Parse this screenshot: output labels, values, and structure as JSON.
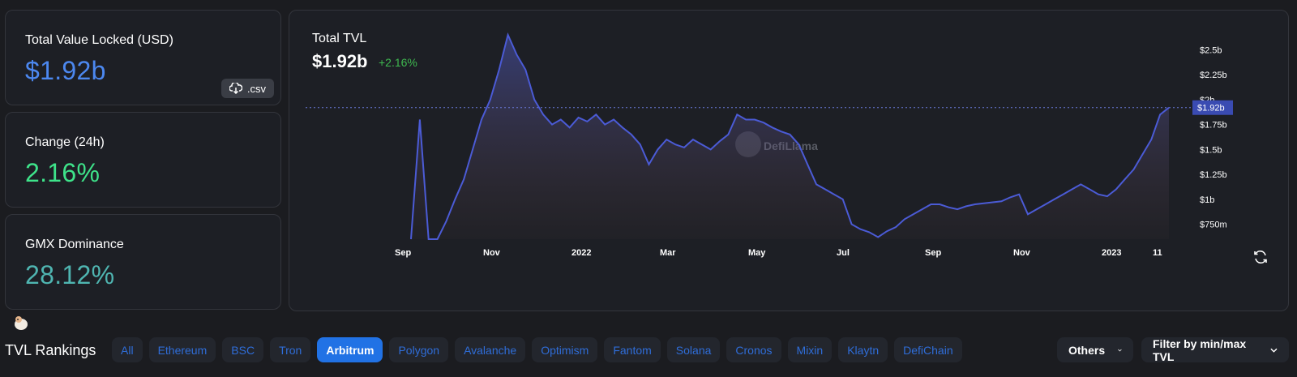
{
  "stats": [
    {
      "label": "Total Value Locked (USD)",
      "value": "$1.92b",
      "color": "#4c88f0"
    },
    {
      "label": "Change (24h)",
      "value": "2.16%",
      "color": "#3ee38a"
    },
    {
      "label": "GMX Dominance",
      "value": "28.12%",
      "color": "#4fb5b1"
    }
  ],
  "csv_label": ".csv",
  "chart": {
    "title": "Total TVL",
    "value": "$1.92b",
    "change": "+2.16%",
    "watermark": "DefiLlama",
    "current_label": "$1.92b"
  },
  "chart_data": {
    "type": "area",
    "title": "Total TVL",
    "x_labels": [
      "Sep",
      "Nov",
      "2022",
      "Mar",
      "May",
      "Jul",
      "Sep",
      "Nov",
      "2023",
      "11"
    ],
    "y_ticks": [
      "$2.5b",
      "$2.25b",
      "$2b",
      "$1.75b",
      "$1.5b",
      "$1.25b",
      "$1b",
      "$750m"
    ],
    "y_tick_values": [
      2.5,
      2.25,
      2.0,
      1.75,
      1.5,
      1.25,
      1.0,
      0.75
    ],
    "ylim": [
      0.6,
      2.65
    ],
    "current_value": 1.92,
    "series": [
      {
        "values": [
          0.6,
          1.8,
          0.6,
          0.6,
          0.78,
          1.0,
          1.2,
          1.5,
          1.8,
          2.0,
          2.3,
          2.65,
          2.45,
          2.3,
          2.0,
          1.85,
          1.75,
          1.8,
          1.72,
          1.82,
          1.78,
          1.85,
          1.75,
          1.8,
          1.72,
          1.65,
          1.55,
          1.35,
          1.5,
          1.6,
          1.55,
          1.52,
          1.6,
          1.55,
          1.5,
          1.58,
          1.65,
          1.85,
          1.8,
          1.8,
          1.77,
          1.72,
          1.68,
          1.65,
          1.55,
          1.35,
          1.15,
          1.1,
          1.05,
          1.0,
          0.75,
          0.7,
          0.67,
          0.62,
          0.68,
          0.72,
          0.8,
          0.85,
          0.9,
          0.95,
          0.95,
          0.92,
          0.9,
          0.93,
          0.95,
          0.96,
          0.97,
          0.98,
          1.02,
          1.05,
          0.85,
          0.9,
          0.95,
          1.0,
          1.05,
          1.1,
          1.15,
          1.1,
          1.05,
          1.03,
          1.1,
          1.2,
          1.3,
          1.45,
          1.6,
          1.85,
          1.92
        ]
      }
    ]
  },
  "rankings": {
    "title": "TVL Rankings",
    "chips": [
      "All",
      "Ethereum",
      "BSC",
      "Tron",
      "Arbitrum",
      "Polygon",
      "Avalanche",
      "Optimism",
      "Fantom",
      "Solana",
      "Cronos",
      "Mixin",
      "Klaytn",
      "DefiChain"
    ],
    "active": "Arbitrum",
    "others_label": "Others",
    "filter_label": "Filter by min/max TVL"
  }
}
